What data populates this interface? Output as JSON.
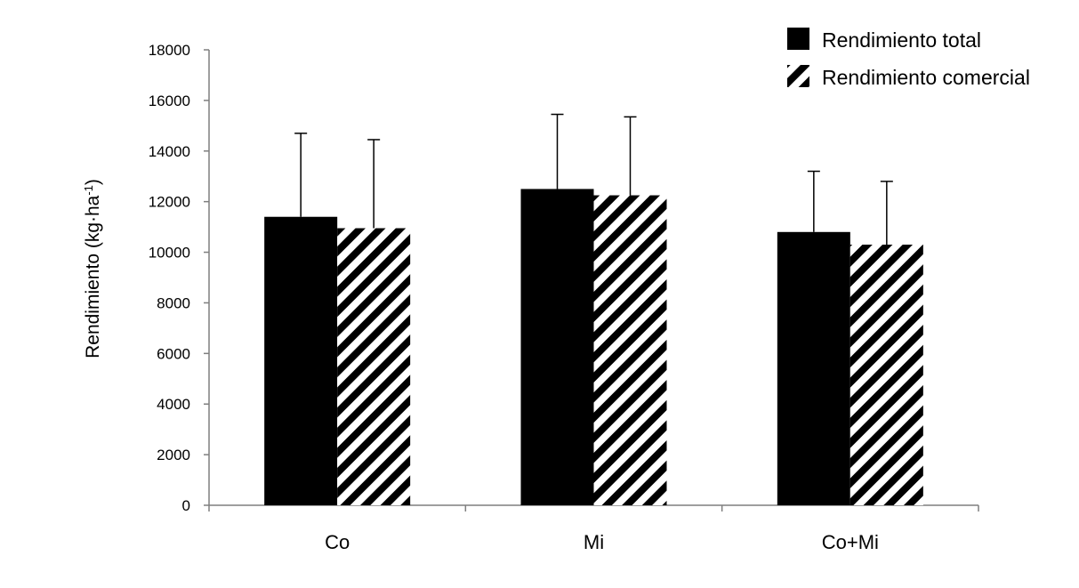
{
  "chart_data": {
    "type": "bar",
    "categories": [
      "Co",
      "Mi",
      "Co+Mi"
    ],
    "series": [
      {
        "name": "Rendimiento total",
        "values": [
          11400,
          12500,
          10800
        ],
        "error": [
          3300,
          2950,
          2400
        ],
        "fill": "solid",
        "color": "#000000"
      },
      {
        "name": "Rendimiento comercial",
        "values": [
          10950,
          12250,
          10300
        ],
        "error": [
          3500,
          3100,
          2500
        ],
        "fill": "diagonal-stripes",
        "color": "#000000"
      }
    ],
    "ylabel": "Rendimiento (kg·ha",
    "ylabel_superscript": "-1",
    "ylabel_close": ")",
    "ylim": [
      0,
      18000
    ],
    "yticks": [
      "0",
      "2000",
      "4000",
      "6000",
      "8000",
      "10000",
      "12000",
      "14000",
      "16000",
      "18000"
    ],
    "grid": false,
    "legend_position": "top-right",
    "error_bars": "upper"
  }
}
